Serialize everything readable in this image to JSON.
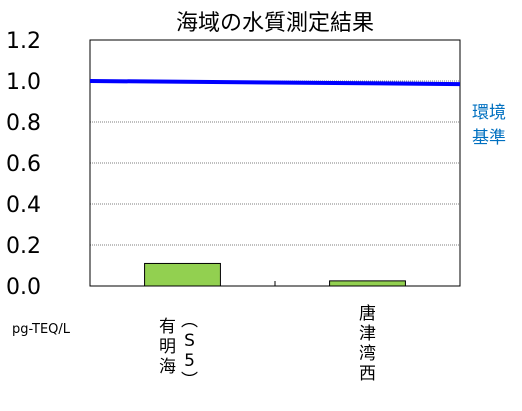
{
  "chart_data": {
    "type": "bar",
    "title": "海域の水質測定結果",
    "categories": [
      "有明海（S5）",
      "唐津湾西"
    ],
    "values": [
      0.11,
      0.025
    ],
    "ylim": [
      0,
      1.2
    ],
    "yticks": [
      "0.0",
      "0.2",
      "0.4",
      "0.6",
      "0.8",
      "1.0",
      "1.2"
    ],
    "ylabel": "",
    "unit_label": "pg-TEQ/L",
    "grid": true,
    "reference_line": {
      "label": "環境基準",
      "label_lines": [
        "環境",
        "基準"
      ],
      "value_start": 1.0,
      "value_end": 0.985
    },
    "colors": {
      "bar": "#92d050",
      "bar_border": "#000000",
      "reference": "#0000ff",
      "reference_label": "#0070c0",
      "grid": "#000000"
    }
  }
}
